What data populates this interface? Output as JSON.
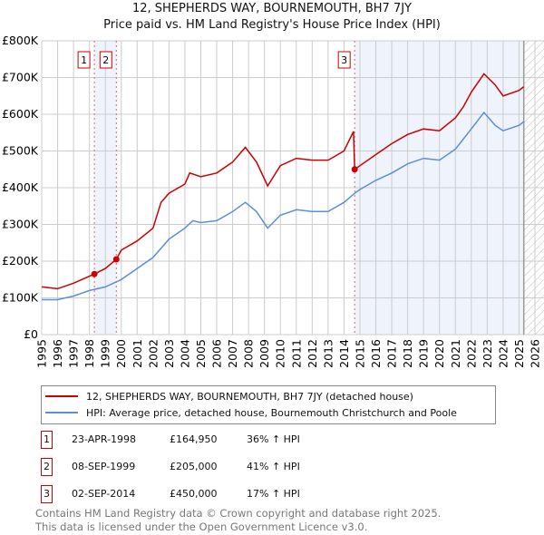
{
  "title": "12, SHEPHERDS WAY, BOURNEMOUTH, BH7 7JY",
  "subtitle": "Price paid vs. HM Land Registry's House Price Index (HPI)",
  "chart_data": {
    "type": "line",
    "title": "12, SHEPHERDS WAY, BOURNEMOUTH, BH7 7JY",
    "subtitle": "Price paid vs. HM Land Registry's House Price Index (HPI)",
    "xlim": [
      1995,
      2026
    ],
    "ylim": [
      0,
      800000
    ],
    "x_ticks": [
      "1995",
      "1996",
      "1997",
      "1998",
      "1999",
      "2000",
      "2001",
      "2002",
      "2003",
      "2004",
      "2005",
      "2006",
      "2007",
      "2008",
      "2009",
      "2010",
      "2011",
      "2012",
      "2013",
      "2014",
      "2015",
      "2016",
      "2017",
      "2018",
      "2019",
      "2020",
      "2021",
      "2022",
      "2023",
      "2024",
      "2025",
      "2026"
    ],
    "y_ticks": [
      {
        "v": 0,
        "label": "£0"
      },
      {
        "v": 100000,
        "label": "£100K"
      },
      {
        "v": 200000,
        "label": "£200K"
      },
      {
        "v": 300000,
        "label": "£300K"
      },
      {
        "v": 400000,
        "label": "£400K"
      },
      {
        "v": 500000,
        "label": "£500K"
      },
      {
        "v": 600000,
        "label": "£600K"
      },
      {
        "v": 700000,
        "label": "£700K"
      },
      {
        "v": 800000,
        "label": "£800K"
      }
    ],
    "grid": true,
    "shaded_ranges": [
      [
        1998.31,
        1999.69
      ],
      [
        2014.67,
        2025.3
      ]
    ],
    "hatched_from": 2025.3,
    "series": [
      {
        "name": "12, SHEPHERDS WAY, BOURNEMOUTH, BH7 7JY (detached house)",
        "color": "#cc0000",
        "x": [
          1995,
          1996,
          1997,
          1998.31,
          1999,
          1999.69,
          2000,
          2001,
          2002,
          2002.5,
          2003,
          2004,
          2004.3,
          2005,
          2006,
          2007,
          2007.8,
          2008.5,
          2009.2,
          2010,
          2011,
          2012,
          2013,
          2014,
          2014.6,
          2014.67,
          2015,
          2016,
          2017,
          2018,
          2019,
          2020,
          2021,
          2021.5,
          2022,
          2022.8,
          2023.5,
          2024,
          2025,
          2025.3
        ],
        "y": [
          130000,
          125000,
          140000,
          164950,
          180000,
          205000,
          230000,
          255000,
          290000,
          360000,
          385000,
          410000,
          440000,
          430000,
          440000,
          470000,
          510000,
          470000,
          405000,
          460000,
          480000,
          475000,
          475000,
          500000,
          553000,
          450000,
          460000,
          490000,
          520000,
          545000,
          560000,
          555000,
          590000,
          620000,
          660000,
          710000,
          680000,
          650000,
          665000,
          675000
        ]
      },
      {
        "name": "HPI: Average price, detached house, Bournemouth Christchurch and Poole",
        "color": "#5b8fd6",
        "x": [
          1995,
          1996,
          1997,
          1998,
          1999,
          2000,
          2001,
          2002,
          2003,
          2004,
          2004.5,
          2005,
          2006,
          2007,
          2007.8,
          2008.5,
          2009.2,
          2010,
          2011,
          2012,
          2013,
          2014,
          2014.67,
          2015,
          2016,
          2017,
          2018,
          2019,
          2020,
          2021,
          2022,
          2022.8,
          2023.5,
          2024,
          2025,
          2025.3
        ],
        "y": [
          95000,
          95000,
          105000,
          120000,
          130000,
          150000,
          180000,
          210000,
          260000,
          290000,
          310000,
          305000,
          310000,
          335000,
          360000,
          335000,
          290000,
          325000,
          340000,
          335000,
          335000,
          360000,
          385000,
          395000,
          420000,
          440000,
          465000,
          480000,
          475000,
          505000,
          560000,
          605000,
          570000,
          555000,
          570000,
          580000
        ]
      }
    ],
    "annotations": [
      {
        "label": "1",
        "x": 1998.31,
        "y": 164950
      },
      {
        "label": "2",
        "x": 1999.69,
        "y": 205000
      },
      {
        "label": "3",
        "x": 2014.67,
        "y": 450000
      }
    ]
  },
  "legend": {
    "red": "12, SHEPHERDS WAY, BOURNEMOUTH, BH7 7JY (detached house)",
    "blue": "HPI: Average price, detached house, Bournemouth Christchurch and Poole"
  },
  "transactions": [
    {
      "num": "1",
      "date": "23-APR-1998",
      "price": "£164,950",
      "hpi": "36% ↑ HPI"
    },
    {
      "num": "2",
      "date": "08-SEP-1999",
      "price": "£205,000",
      "hpi": "41% ↑ HPI"
    },
    {
      "num": "3",
      "date": "02-SEP-2014",
      "price": "£450,000",
      "hpi": "17% ↑ HPI"
    }
  ],
  "footer": {
    "line1": "Contains HM Land Registry data © Crown copyright and database right 2025.",
    "line2": "This data is licensed under the Open Government Licence v3.0."
  }
}
